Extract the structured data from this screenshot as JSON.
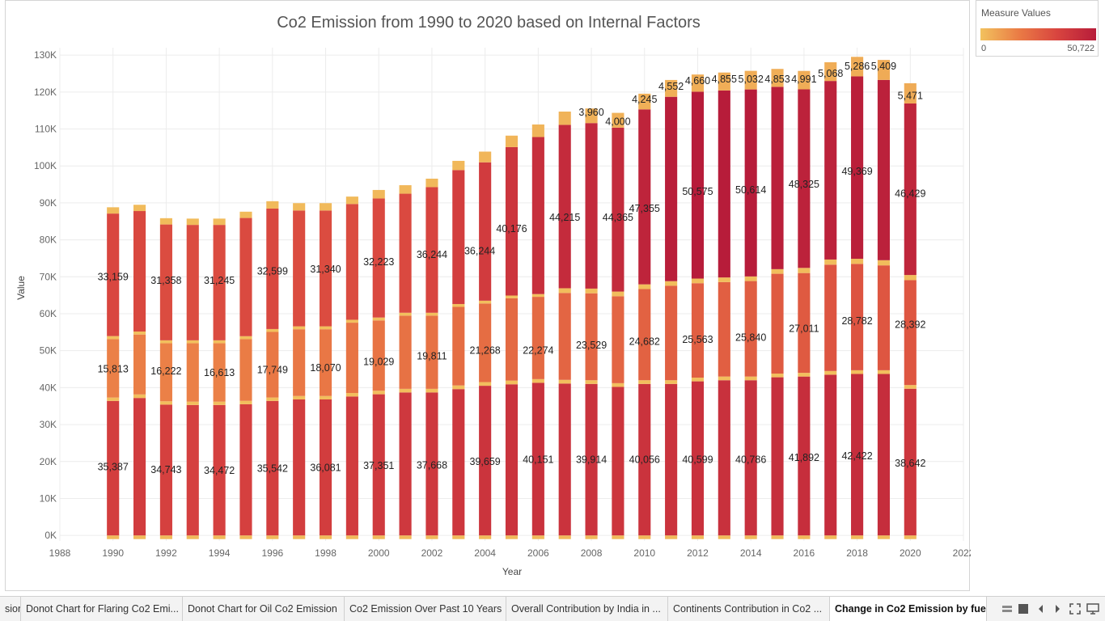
{
  "chart_data": {
    "type": "bar",
    "stacked": true,
    "title": "Co2 Emission from 1990 to 2020 based on Internal Factors",
    "xlabel": "Year",
    "ylabel": "Value",
    "xlim": [
      1988,
      2022
    ],
    "ylim": [
      -1500,
      132000
    ],
    "x_ticks": [
      "1988",
      "1990",
      "1992",
      "1994",
      "1996",
      "1998",
      "2000",
      "2002",
      "2004",
      "2006",
      "2008",
      "2010",
      "2012",
      "2014",
      "2016",
      "2018",
      "2020",
      "2022"
    ],
    "y_ticks": [
      "0K",
      "10K",
      "20K",
      "30K",
      "40K",
      "50K",
      "60K",
      "70K",
      "80K",
      "90K",
      "100K",
      "110K",
      "120K",
      "130K"
    ],
    "x": [
      1990,
      1991,
      1992,
      1993,
      1994,
      1995,
      1996,
      1997,
      1998,
      1999,
      2000,
      2001,
      2002,
      2003,
      2004,
      2005,
      2006,
      2007,
      2008,
      2009,
      2010,
      2011,
      2012,
      2013,
      2014,
      2015,
      2016,
      2017,
      2018,
      2019,
      2020
    ],
    "series": [
      {
        "values": [
          -1000,
          -1000,
          -1000,
          -1000,
          -1000,
          -1000,
          -1000,
          -1000,
          -1000,
          -1000,
          -1000,
          -1000,
          -1000,
          -1000,
          -1000,
          -1000,
          -1000,
          -1000,
          -1000,
          -1000,
          -1000,
          -1000,
          -1000,
          -1000,
          -1000,
          -1000,
          -1000,
          -1000,
          -1000,
          -1000,
          -1000
        ]
      },
      {
        "values": [
          36400,
          37200,
          35400,
          35300,
          35300,
          35500,
          36400,
          36800,
          36800,
          37600,
          38200,
          38700,
          38700,
          39600,
          40500,
          40900,
          41300,
          41100,
          41000,
          40200,
          41000,
          41000,
          41700,
          42000,
          42000,
          42800,
          43000,
          43500,
          43700,
          43700,
          39700
        ]
      },
      {
        "values": [
          909,
          950,
          900,
          900,
          900,
          917,
          923,
          930,
          930,
          945,
          955,
          970,
          970,
          986,
          1000,
          1000,
          1000,
          1000,
          1000,
          1000,
          1000,
          1000,
          1000,
          1000,
          1000,
          1000,
          1000,
          1000,
          1000,
          1000,
          1000
        ]
      },
      {
        "values": [
          15813,
          16222,
          15700,
          15800,
          15800,
          16700,
          17749,
          18070,
          18070,
          19029,
          19029,
          19811,
          19811,
          21268,
          21268,
          22274,
          22274,
          23529,
          23529,
          23529,
          24682,
          25563,
          25563,
          25563,
          25840,
          27011,
          27011,
          28782,
          28782,
          28392,
          28392
        ]
      },
      {
        "values": [
          828,
          815,
          800,
          800,
          800,
          800,
          783,
          788,
          788,
          791,
          789,
          782,
          783,
          775,
          760,
          750,
          750,
          1270,
          1270,
          1270,
          1270,
          1250,
          1250,
          1250,
          1250,
          1250,
          1390,
          1390,
          1390,
          1390,
          1390
        ]
      },
      {
        "values": [
          33159,
          32600,
          31358,
          31245,
          31245,
          32000,
          32599,
          31340,
          31340,
          31340,
          32223,
          32223,
          33990,
          36244,
          37450,
          40176,
          42500,
          44215,
          44800,
          44365,
          47355,
          49900,
          50575,
          50614,
          50614,
          49350,
          48325,
          48325,
          49369,
          48800,
          46429
        ]
      },
      {
        "values": [
          1700,
          1700,
          1700,
          1700,
          1700,
          1700,
          2000,
          2000,
          2000,
          2000,
          2300,
          2300,
          2300,
          2500,
          2900,
          3100,
          3400,
          3600,
          3960,
          4000,
          4245,
          4552,
          4660,
          4855,
          5032,
          4853,
          4991,
          5068,
          5286,
          5409,
          5471
        ]
      }
    ],
    "value_labels": [
      {
        "x": 1990,
        "y": 70000,
        "text": "33,159"
      },
      {
        "x": 1990,
        "y": 45000,
        "text": "15,813"
      },
      {
        "x": 1990,
        "y": 18500,
        "text": "35,387"
      },
      {
        "x": 1992,
        "y": 69000,
        "text": "31,358"
      },
      {
        "x": 1992,
        "y": 44500,
        "text": "16,222"
      },
      {
        "x": 1992,
        "y": 17800,
        "text": "34,743"
      },
      {
        "x": 1994,
        "y": 69000,
        "text": "31,245"
      },
      {
        "x": 1994,
        "y": 44000,
        "text": "16,613"
      },
      {
        "x": 1994,
        "y": 17500,
        "text": "34,472"
      },
      {
        "x": 1996,
        "y": 71500,
        "text": "32,599"
      },
      {
        "x": 1996,
        "y": 44800,
        "text": "17,749"
      },
      {
        "x": 1996,
        "y": 18100,
        "text": "35,542"
      },
      {
        "x": 1998,
        "y": 72000,
        "text": "31,340"
      },
      {
        "x": 1998,
        "y": 45300,
        "text": "18,070"
      },
      {
        "x": 1998,
        "y": 18300,
        "text": "36,081"
      },
      {
        "x": 2000,
        "y": 74000,
        "text": "32,223"
      },
      {
        "x": 2000,
        "y": 47000,
        "text": "19,029"
      },
      {
        "x": 2000,
        "y": 18800,
        "text": "37,351"
      },
      {
        "x": 2002,
        "y": 76000,
        "text": "36,244"
      },
      {
        "x": 2002,
        "y": 48500,
        "text": "19,811"
      },
      {
        "x": 2002,
        "y": 19000,
        "text": "37,668"
      },
      {
        "x": 2003.8,
        "y": 77000,
        "text": "36,244"
      },
      {
        "x": 2004,
        "y": 50000,
        "text": "21,268"
      },
      {
        "x": 2004,
        "y": 20000,
        "text": "39,659"
      },
      {
        "x": 2005,
        "y": 83000,
        "text": "40,176"
      },
      {
        "x": 2006,
        "y": 50000,
        "text": "22,274"
      },
      {
        "x": 2006,
        "y": 20500,
        "text": "40,151"
      },
      {
        "x": 2007,
        "y": 86000,
        "text": "44,215"
      },
      {
        "x": 2008,
        "y": 51500,
        "text": "23,529"
      },
      {
        "x": 2008,
        "y": 20500,
        "text": "39,914"
      },
      {
        "x": 2009,
        "y": 86000,
        "text": "44,365"
      },
      {
        "x": 2010,
        "y": 88500,
        "text": "47,355"
      },
      {
        "x": 2010,
        "y": 52500,
        "text": "24,682"
      },
      {
        "x": 2010,
        "y": 20500,
        "text": "40,056"
      },
      {
        "x": 2012,
        "y": 93000,
        "text": "50,575"
      },
      {
        "x": 2012,
        "y": 53000,
        "text": "25,563"
      },
      {
        "x": 2012,
        "y": 20500,
        "text": "40,599"
      },
      {
        "x": 2014,
        "y": 93500,
        "text": "50,614"
      },
      {
        "x": 2014,
        "y": 53500,
        "text": "25,840"
      },
      {
        "x": 2014,
        "y": 20500,
        "text": "40,786"
      },
      {
        "x": 2016,
        "y": 95000,
        "text": "48,325"
      },
      {
        "x": 2016,
        "y": 56000,
        "text": "27,011"
      },
      {
        "x": 2016,
        "y": 21000,
        "text": "41,892"
      },
      {
        "x": 2018,
        "y": 98500,
        "text": "49,369"
      },
      {
        "x": 2018,
        "y": 58000,
        "text": "28,782"
      },
      {
        "x": 2018,
        "y": 21500,
        "text": "42,422"
      },
      {
        "x": 2020,
        "y": 92500,
        "text": "46,429"
      },
      {
        "x": 2020,
        "y": 57000,
        "text": "28,392"
      },
      {
        "x": 2020,
        "y": 19500,
        "text": "38,642"
      },
      {
        "x": 2008,
        "y": 114500,
        "text": "3,960"
      },
      {
        "x": 2009,
        "y": 112000,
        "text": "4,000"
      },
      {
        "x": 2010,
        "y": 118000,
        "text": "4,245"
      },
      {
        "x": 2011,
        "y": 121500,
        "text": "4,552"
      },
      {
        "x": 2012,
        "y": 123000,
        "text": "4,660"
      },
      {
        "x": 2013,
        "y": 123500,
        "text": "4,855"
      },
      {
        "x": 2014,
        "y": 123500,
        "text": "5,032"
      },
      {
        "x": 2015,
        "y": 123500,
        "text": "4,853"
      },
      {
        "x": 2016,
        "y": 123500,
        "text": "4,991"
      },
      {
        "x": 2017,
        "y": 125000,
        "text": "5,068"
      },
      {
        "x": 2018,
        "y": 127000,
        "text": "5,286"
      },
      {
        "x": 2019,
        "y": 127000,
        "text": "5,409"
      },
      {
        "x": 2020,
        "y": 119000,
        "text": "5,471"
      }
    ]
  },
  "legend": {
    "title": "Measure Values",
    "min_label": "0",
    "max_label": "50,722",
    "min": 0,
    "max": 50722
  },
  "colors": {
    "gridline": "#ececec",
    "axis_text": "#666666",
    "title_text": "#555555",
    "label_text": "#222222"
  },
  "tabs": [
    {
      "label": "sion",
      "active": false
    },
    {
      "label": "Donot Chart for Flaring Co2 Emi...",
      "active": false
    },
    {
      "label": "Donot Chart for Oil Co2 Emission",
      "active": false
    },
    {
      "label": "Co2 Emission Over Past 10 Years",
      "active": false
    },
    {
      "label": "Overall Contribution by India in ...",
      "active": false
    },
    {
      "label": "Continents Contribution in Co2 ...",
      "active": false
    },
    {
      "label": "Change in Co2 Emission by fuel",
      "active": true
    }
  ]
}
